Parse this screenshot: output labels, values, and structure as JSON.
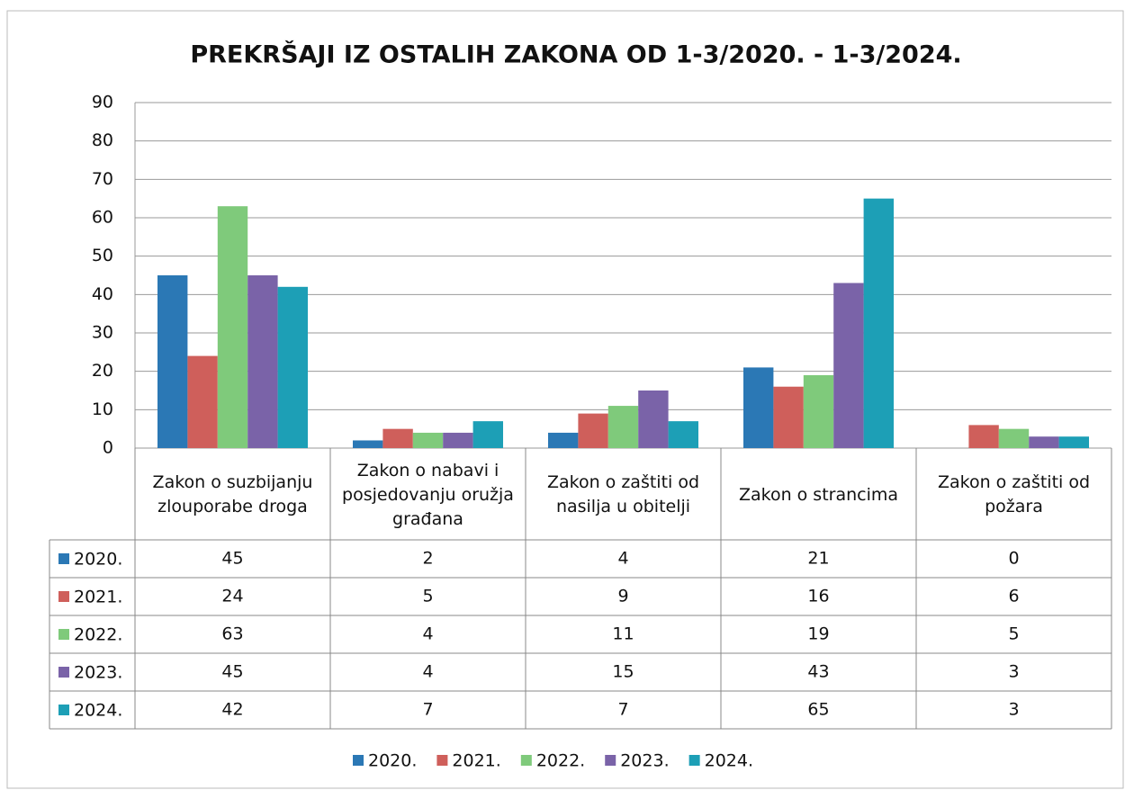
{
  "chart_data": {
    "type": "bar",
    "title": "PREKRŠAJI IZ OSTALIH ZAKONA OD 1-3/2020. - 1-3/2024.",
    "categories": [
      "Zakon o suzbijanju zlouporabe droga",
      "Zakon o nabavi i posjedovanju oružja građana",
      "Zakon o zaštiti od nasilja u obitelji",
      "Zakon o strancima",
      "Zakon o zaštiti od požara"
    ],
    "series": [
      {
        "name": "2020.",
        "color": "#2b78b5",
        "values": [
          45,
          2,
          4,
          21,
          0
        ]
      },
      {
        "name": "2021.",
        "color": "#cf5f5b",
        "values": [
          24,
          5,
          9,
          16,
          6
        ]
      },
      {
        "name": "2022.",
        "color": "#7fca7b",
        "values": [
          63,
          4,
          11,
          19,
          5
        ]
      },
      {
        "name": "2023.",
        "color": "#7a63a8",
        "values": [
          45,
          4,
          15,
          43,
          3
        ]
      },
      {
        "name": "2024.",
        "color": "#1d9fb6",
        "values": [
          42,
          7,
          7,
          65,
          3
        ]
      }
    ],
    "ylim": [
      0,
      90
    ],
    "yticks": [
      0,
      10,
      20,
      30,
      40,
      50,
      60,
      70,
      80,
      90
    ],
    "grid": true,
    "legend": "bottom"
  }
}
